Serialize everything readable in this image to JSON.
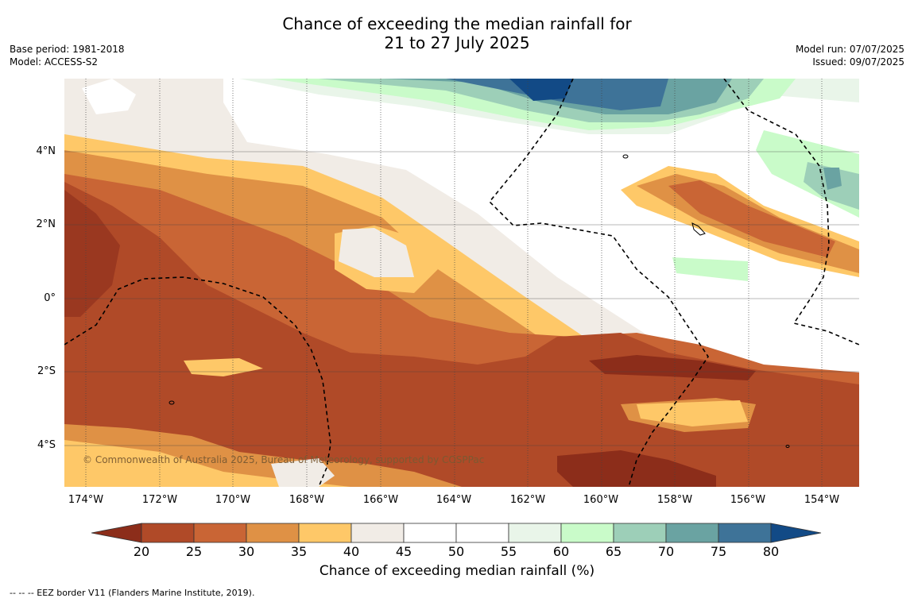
{
  "title_line1": "Chance of exceeding the median rainfall for",
  "title_line2": "21 to 27 July 2025",
  "base_period": "Base period: 1981-2018",
  "model": "Model: ACCESS-S2",
  "model_run": "Model run: 07/07/2025",
  "issued": "Issued: 09/07/2025",
  "credit": "© Commonwealth of Australia 2025, Bureau of Meteorology, supported by COSPPac",
  "lat_labels": [
    "4°N",
    "2°N",
    "0°",
    "2°S",
    "4°S"
  ],
  "lon_labels": [
    "174°W",
    "172°W",
    "170°W",
    "168°W",
    "166°W",
    "164°W",
    "162°W",
    "160°W",
    "158°W",
    "156°W",
    "154°W"
  ],
  "colorbar": {
    "label": "Chance of exceeding median rainfall (%)",
    "ticks": [
      "20",
      "25",
      "30",
      "35",
      "40",
      "45",
      "50",
      "55",
      "60",
      "65",
      "70",
      "75",
      "80"
    ],
    "colors": [
      "#8c2d1a",
      "#b04a28",
      "#c96535",
      "#df9145",
      "#fec868",
      "#f1ece6",
      "#ffffff",
      "#ffffff",
      "#e9f5e9",
      "#c9fbc9",
      "#9dcfb8",
      "#6aa3a2",
      "#3e7398",
      "#124a86"
    ]
  },
  "footer": "--  --  -- EEZ border V11 (Flanders Marine Institute, 2019)."
}
